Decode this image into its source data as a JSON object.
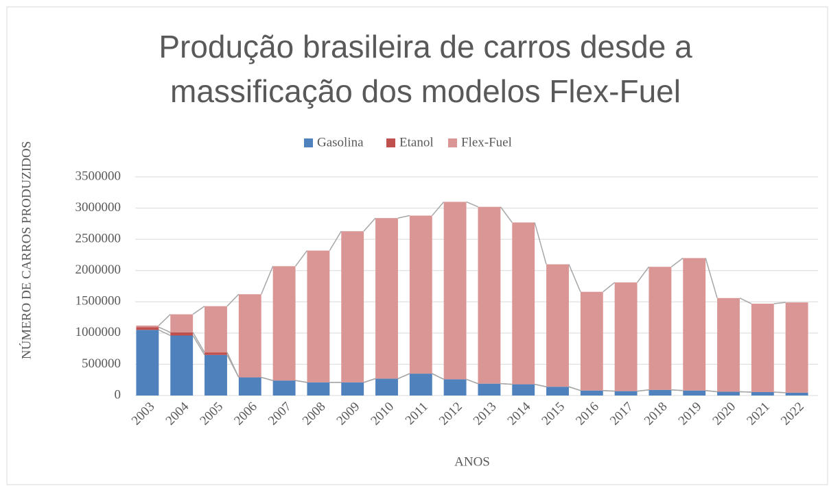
{
  "chart_data": {
    "type": "stacked_bar",
    "title": [
      "Produção brasileira de carros desde a",
      "massificação dos modelos Flex-Fuel"
    ],
    "x_label": "ANOS",
    "y_label": "NÚMERO DE CARROS PRODUZIDOS",
    "categories": [
      "2003",
      "2004",
      "2005",
      "2006",
      "2007",
      "2008",
      "2009",
      "2010",
      "2011",
      "2012",
      "2013",
      "2014",
      "2015",
      "2016",
      "2017",
      "2018",
      "2019",
      "2020",
      "2021",
      "2022"
    ],
    "series": [
      {
        "name": "Gasolina",
        "color": "#4f81bd",
        "values": [
          1050000,
          960000,
          650000,
          290000,
          240000,
          210000,
          210000,
          270000,
          350000,
          260000,
          190000,
          180000,
          140000,
          80000,
          70000,
          90000,
          80000,
          60000,
          55000,
          45000
        ]
      },
      {
        "name": "Etanol",
        "color": "#c0504d",
        "values": [
          45000,
          50000,
          40000,
          1000,
          0,
          0,
          0,
          0,
          0,
          0,
          0,
          0,
          0,
          0,
          0,
          0,
          0,
          0,
          0,
          0
        ]
      },
      {
        "name": "Flex-Fuel",
        "color": "#d99694",
        "values": [
          25000,
          290000,
          740000,
          1330000,
          1830000,
          2110000,
          2420000,
          2570000,
          2530000,
          2840000,
          2830000,
          2590000,
          1960000,
          1580000,
          1740000,
          1970000,
          2120000,
          1500000,
          1415000,
          1445000
        ]
      }
    ],
    "ylim": [
      0,
      3500000
    ],
    "yticks": [
      0,
      500000,
      1000000,
      1500000,
      2000000,
      2500000,
      3000000,
      3500000
    ],
    "grid": true,
    "legend": "top"
  }
}
